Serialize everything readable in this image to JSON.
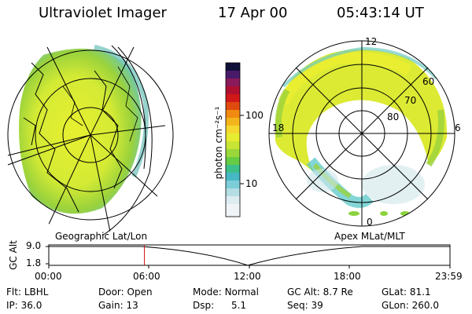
{
  "header": {
    "instrument": "Ultraviolet Imager",
    "date": "17 Apr 00",
    "time": "05:43:14 UT"
  },
  "colorbar": {
    "unit_label": "photon cm⁻²s⁻¹",
    "tick_labels": [
      "100",
      "10"
    ]
  },
  "polar_plot": {
    "mlt_labels": [
      "12",
      "18",
      "6",
      "0"
    ],
    "lat_labels": [
      "60",
      "70",
      "80"
    ]
  },
  "panels": {
    "left_label": "Geographic Lat/Lon",
    "right_label": "Apex  MLat/MLT"
  },
  "altitude_plot": {
    "ylabel": "GC Alt",
    "yticks": [
      "9.0",
      "1.8"
    ],
    "xticks": [
      "00:00",
      "06:00",
      "12:00",
      "18:00",
      "23:59"
    ],
    "current_time_marker_hours": 5.72
  },
  "status": {
    "row1": [
      {
        "label": "Flt:",
        "value": "LBHL"
      },
      {
        "label": "Door:",
        "value": "Open"
      },
      {
        "label": "Mode:",
        "value": "Normal"
      },
      {
        "label": "GC Alt:",
        "value": "8.7 Re"
      },
      {
        "label": "GLat:",
        "value": "81.1"
      }
    ],
    "row2": [
      {
        "label": "IP:",
        "value": "36.0"
      },
      {
        "label": "Gain:",
        "value": "13"
      },
      {
        "label": "Dsp:",
        "value": "5.1"
      },
      {
        "label": "Seq:",
        "value": "39"
      },
      {
        "label": "GLon:",
        "value": "260.0"
      }
    ]
  },
  "colors": {
    "aurora_yellow": "#e6f030",
    "aurora_green": "#8cd23c",
    "aurora_cyan": "#5ac8c8",
    "marker_red": "#d01010"
  }
}
